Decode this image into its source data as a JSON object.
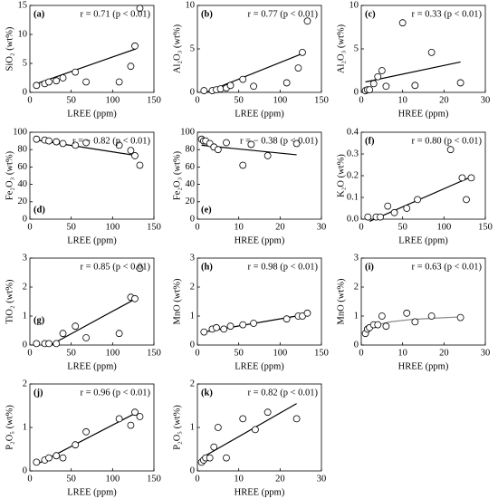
{
  "chart_data": [
    {
      "type": "scatter",
      "label": "(a)",
      "annotation": "r = 0.71 (p < 0.01)",
      "xlabel": "LREE (ppm)",
      "ylabel": "SiO₂ (wt%)",
      "x": [
        8,
        18,
        23,
        32,
        40,
        55,
        68,
        108,
        122,
        127,
        133
      ],
      "values": [
        1.2,
        1.5,
        1.8,
        2,
        2.5,
        3.5,
        1.8,
        1.8,
        4.5,
        8,
        14.5
      ],
      "xlim": [
        0,
        150
      ],
      "ylim": [
        0,
        15
      ],
      "xticks": [
        0,
        50,
        100,
        150
      ],
      "yticks": [
        0,
        5,
        10,
        15
      ],
      "trend": {
        "x": [
          8,
          128
        ],
        "y": [
          1.5,
          7.5
        ]
      }
    },
    {
      "type": "scatter",
      "label": "(b)",
      "annotation": "r = 0.77 (p < 0.01)",
      "xlabel": "LREE (ppm)",
      "ylabel": "Al₂O₃ (wt%)",
      "x": [
        8,
        18,
        23,
        28,
        35,
        40,
        55,
        68,
        108,
        122,
        127,
        133
      ],
      "values": [
        0.2,
        0.2,
        0.3,
        0.4,
        0.5,
        0.8,
        1.5,
        0.7,
        1.1,
        2.8,
        4.6,
        8.2
      ],
      "xlim": [
        0,
        150
      ],
      "ylim": [
        0,
        10
      ],
      "xticks": [
        0,
        50,
        100,
        150
      ],
      "yticks": [
        0,
        5,
        10
      ],
      "trend": {
        "x": [
          10,
          128
        ],
        "y": [
          0,
          4.5
        ]
      }
    },
    {
      "type": "scatter",
      "label": "(c)",
      "annotation": "r = 0.33 (p < 0.01)",
      "xlabel": "HREE (ppm)",
      "ylabel": "Al₂O₃ (wt%)",
      "x": [
        1,
        1.5,
        2,
        3,
        4,
        5,
        6,
        10,
        13,
        17,
        24
      ],
      "values": [
        0.2,
        0.3,
        0.3,
        1,
        1.8,
        2.5,
        0.7,
        8,
        0.8,
        4.6,
        1.1
      ],
      "xlim": [
        0,
        30
      ],
      "ylim": [
        0,
        10
      ],
      "xticks": [
        0,
        10,
        20,
        30
      ],
      "yticks": [
        0,
        5,
        10
      ],
      "trend": {
        "x": [
          1,
          24
        ],
        "y": [
          1.2,
          3.5
        ]
      }
    },
    {
      "type": "scatter",
      "label": "(d)",
      "annotation": "r = − 0.82 (p < 0.01)",
      "xlabel": "LREE (ppm)",
      "ylabel": "Fe₂O₃ (wt%)",
      "x": [
        8,
        18,
        23,
        32,
        40,
        55,
        68,
        108,
        122,
        127,
        133
      ],
      "values": [
        92,
        91,
        90,
        89,
        87,
        85,
        88,
        85,
        79,
        73,
        62
      ],
      "xlim": [
        0,
        150
      ],
      "ylim": [
        0,
        100
      ],
      "xticks": [
        0,
        50,
        100,
        150
      ],
      "yticks": [
        0,
        20,
        40,
        60,
        80,
        100
      ],
      "trend": {
        "x": [
          8,
          130
        ],
        "y": [
          91,
          73
        ]
      }
    },
    {
      "type": "scatter",
      "label": "(e)",
      "annotation": "r = − 0.38 (p < 0.01)",
      "xlabel": "HREE (ppm)",
      "ylabel": "Fe₂O₃ (wt%)",
      "x": [
        1,
        1.5,
        2,
        3,
        4,
        5,
        7,
        11,
        13,
        17,
        24
      ],
      "values": [
        92,
        90,
        90,
        87,
        83,
        80,
        88,
        62,
        86,
        73,
        87
      ],
      "xlim": [
        0,
        30
      ],
      "ylim": [
        0,
        100
      ],
      "xticks": [
        0,
        10,
        20,
        30
      ],
      "yticks": [
        0,
        20,
        40,
        60,
        80,
        100
      ],
      "trend": {
        "x": [
          1,
          24
        ],
        "y": [
          85,
          74
        ]
      }
    },
    {
      "type": "scatter",
      "label": "(f)",
      "annotation": "r = 0.80 (p < 0.01)",
      "xlabel": "LREE (ppm)",
      "ylabel": "K₂O (wt%)",
      "x": [
        8,
        18,
        23,
        32,
        40,
        55,
        68,
        108,
        122,
        127,
        133
      ],
      "values": [
        0.01,
        0.01,
        0.01,
        0.06,
        0.03,
        0.05,
        0.09,
        0.32,
        0.19,
        0.09,
        0.19
      ],
      "xlim": [
        0,
        150
      ],
      "ylim": [
        0,
        0.4
      ],
      "xticks": [
        0,
        50,
        100,
        150
      ],
      "yticks": [
        {
          "value": 0,
          "label": "0.0"
        },
        0.1,
        0.2,
        0.3,
        0.4
      ],
      "trend": {
        "x": [
          10,
          130
        ],
        "y": [
          -0.01,
          0.19
        ]
      }
    },
    {
      "type": "scatter",
      "label": "(g)",
      "annotation": "r = 0.85 (p < 0.01)",
      "xlabel": "LREE (ppm)",
      "ylabel": "TiO₂ (wt%)",
      "x": [
        8,
        18,
        23,
        32,
        40,
        55,
        68,
        108,
        122,
        127,
        133
      ],
      "values": [
        0.05,
        0.05,
        0.05,
        0.05,
        0.4,
        0.65,
        0.25,
        0.4,
        1.65,
        1.6,
        2.65
      ],
      "xlim": [
        0,
        150
      ],
      "ylim": [
        0,
        3
      ],
      "xticks": [
        0,
        50,
        100,
        150
      ],
      "yticks": [
        0,
        1,
        2,
        3
      ],
      "trend": {
        "x": [
          25,
          128
        ],
        "y": [
          0,
          1.6
        ]
      }
    },
    {
      "type": "scatter",
      "label": "(h)",
      "annotation": "r = 0.98 (p < 0.01)",
      "xlabel": "LREE (ppm)",
      "ylabel": "MnO (wt%)",
      "x": [
        8,
        18,
        23,
        32,
        40,
        55,
        68,
        108,
        122,
        127,
        133
      ],
      "values": [
        0.45,
        0.55,
        0.6,
        0.55,
        0.65,
        0.7,
        0.75,
        0.9,
        1.0,
        1.0,
        1.1
      ],
      "xlim": [
        0,
        150
      ],
      "ylim": [
        0,
        3
      ],
      "xticks": [
        0,
        50,
        100,
        150
      ],
      "yticks": [
        0,
        1,
        2,
        3
      ],
      "trend": {
        "x": [
          8,
          130
        ],
        "y": [
          0.45,
          1.05
        ]
      }
    },
    {
      "type": "scatter",
      "label": "(i)",
      "annotation": "r = 0.63 (p < 0.01)",
      "xlabel": "HREE (ppm)",
      "ylabel": "MnO (wt%)",
      "x": [
        1,
        1.5,
        2,
        3,
        4,
        5,
        6,
        11,
        13,
        17,
        24
      ],
      "values": [
        0.4,
        0.55,
        0.6,
        0.7,
        0.7,
        1.0,
        0.65,
        1.1,
        0.8,
        1.0,
        0.95
      ],
      "xlim": [
        0,
        30
      ],
      "ylim": [
        0,
        3
      ],
      "xticks": [
        0,
        10,
        20,
        30
      ],
      "yticks": [
        0,
        1,
        2,
        3
      ],
      "trend": {
        "x": [
          1,
          2,
          4,
          7,
          12,
          18,
          24
        ],
        "y": [
          0.45,
          0.58,
          0.7,
          0.8,
          0.88,
          0.93,
          0.97
        ]
      },
      "trend_color": "#888888"
    },
    {
      "type": "scatter",
      "label": "(j)",
      "annotation": "r = 0.96 (p < 0.01)",
      "xlabel": "LREE (ppm)",
      "ylabel": "P₂O₅ (wt%)",
      "x": [
        8,
        18,
        23,
        32,
        40,
        55,
        68,
        108,
        122,
        127,
        133
      ],
      "values": [
        0.2,
        0.25,
        0.3,
        0.35,
        0.3,
        0.6,
        0.9,
        1.2,
        1.05,
        1.35,
        1.25
      ],
      "xlim": [
        0,
        150
      ],
      "ylim": [
        0,
        2
      ],
      "xticks": [
        0,
        50,
        100,
        150
      ],
      "yticks": [
        0,
        1,
        2
      ],
      "trend": {
        "x": [
          8,
          130
        ],
        "y": [
          0.15,
          1.35
        ]
      }
    },
    {
      "type": "scatter",
      "label": "(k)",
      "annotation": "r = 0.82 (p < 0.01)",
      "xlabel": "HREE (ppm)",
      "ylabel": "P₂O₅ (wt%)",
      "x": [
        1,
        1.5,
        2,
        3,
        4,
        5,
        7,
        11,
        14,
        17,
        24
      ],
      "values": [
        0.2,
        0.25,
        0.3,
        0.3,
        0.55,
        1.0,
        0.3,
        1.2,
        0.95,
        1.35,
        1.2
      ],
      "xlim": [
        0,
        30
      ],
      "ylim": [
        0,
        2
      ],
      "xticks": [
        0,
        10,
        20,
        30
      ],
      "yticks": [
        0,
        1,
        2
      ],
      "trend": {
        "x": [
          1,
          24
        ],
        "y": [
          0.3,
          1.55
        ]
      }
    }
  ]
}
